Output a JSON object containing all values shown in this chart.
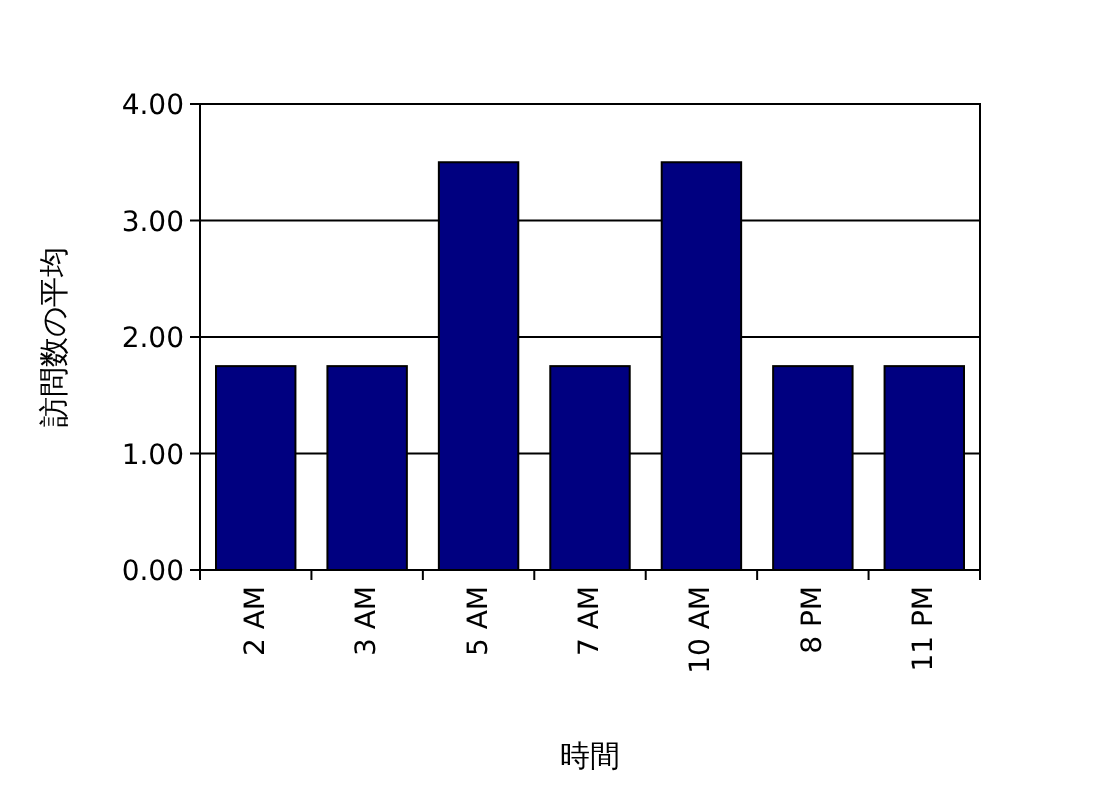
{
  "chart_data": {
    "type": "bar",
    "xlabel": "時間",
    "ylabel": "訪問数の平均",
    "categories": [
      "2 AM",
      "3 AM",
      "5 AM",
      "7 AM",
      "10 AM",
      "8 PM",
      "11 PM"
    ],
    "values": [
      1.75,
      1.75,
      3.5,
      1.75,
      3.5,
      1.75,
      1.75
    ],
    "color": "#000080",
    "ylim": [
      0,
      4
    ],
    "yticks": [
      {
        "value": 0,
        "label": "0.00"
      },
      {
        "value": 1,
        "label": "1.00"
      },
      {
        "value": 2,
        "label": "2.00"
      },
      {
        "value": 3,
        "label": "3.00"
      },
      {
        "value": 4,
        "label": "4.00"
      }
    ],
    "grid": "y"
  }
}
